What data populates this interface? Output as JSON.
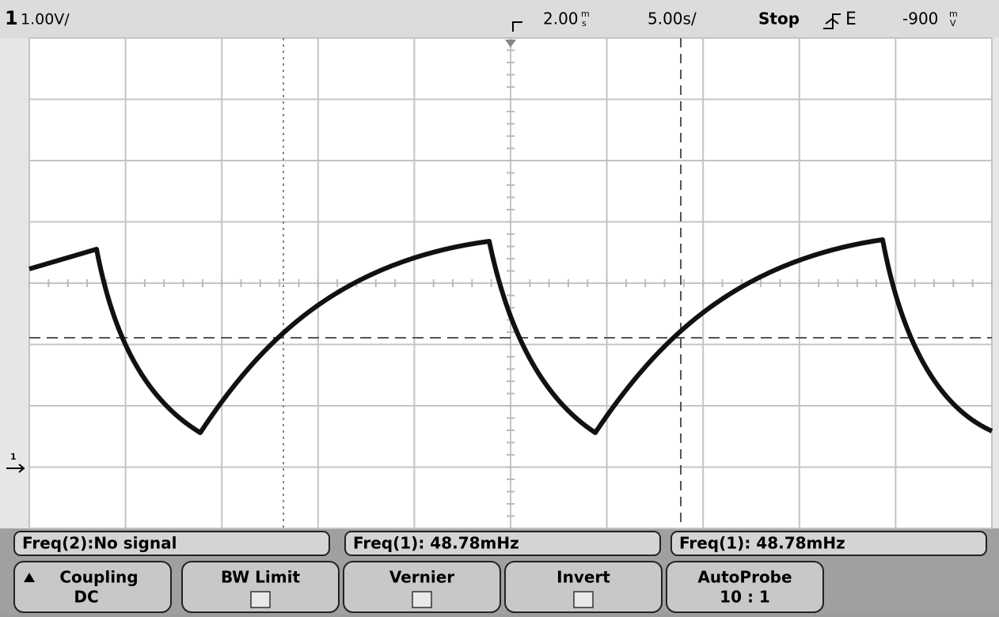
{
  "status_bar": {
    "channel": "1",
    "scale": "1.00V/",
    "delay": {
      "value": "2.00",
      "unit_top": "m",
      "unit_bottom": "s"
    },
    "timebase": "5.00s/",
    "run_state": "Stop",
    "trigger_source": "E",
    "trigger_level": {
      "value": "-900",
      "unit_top": "m",
      "unit_bottom": "V"
    }
  },
  "ground_marker": "1",
  "measurements": [
    "Freq(2):No signal",
    "Freq(1): 48.78mHz",
    "Freq(1): 48.78mHz"
  ],
  "softkeys": [
    {
      "label": "Coupling",
      "value": "DC"
    },
    {
      "label": "BW Limit"
    },
    {
      "label": "Vernier"
    },
    {
      "label": "Invert"
    },
    {
      "label": "AutoProbe",
      "value": "10 : 1"
    }
  ]
}
